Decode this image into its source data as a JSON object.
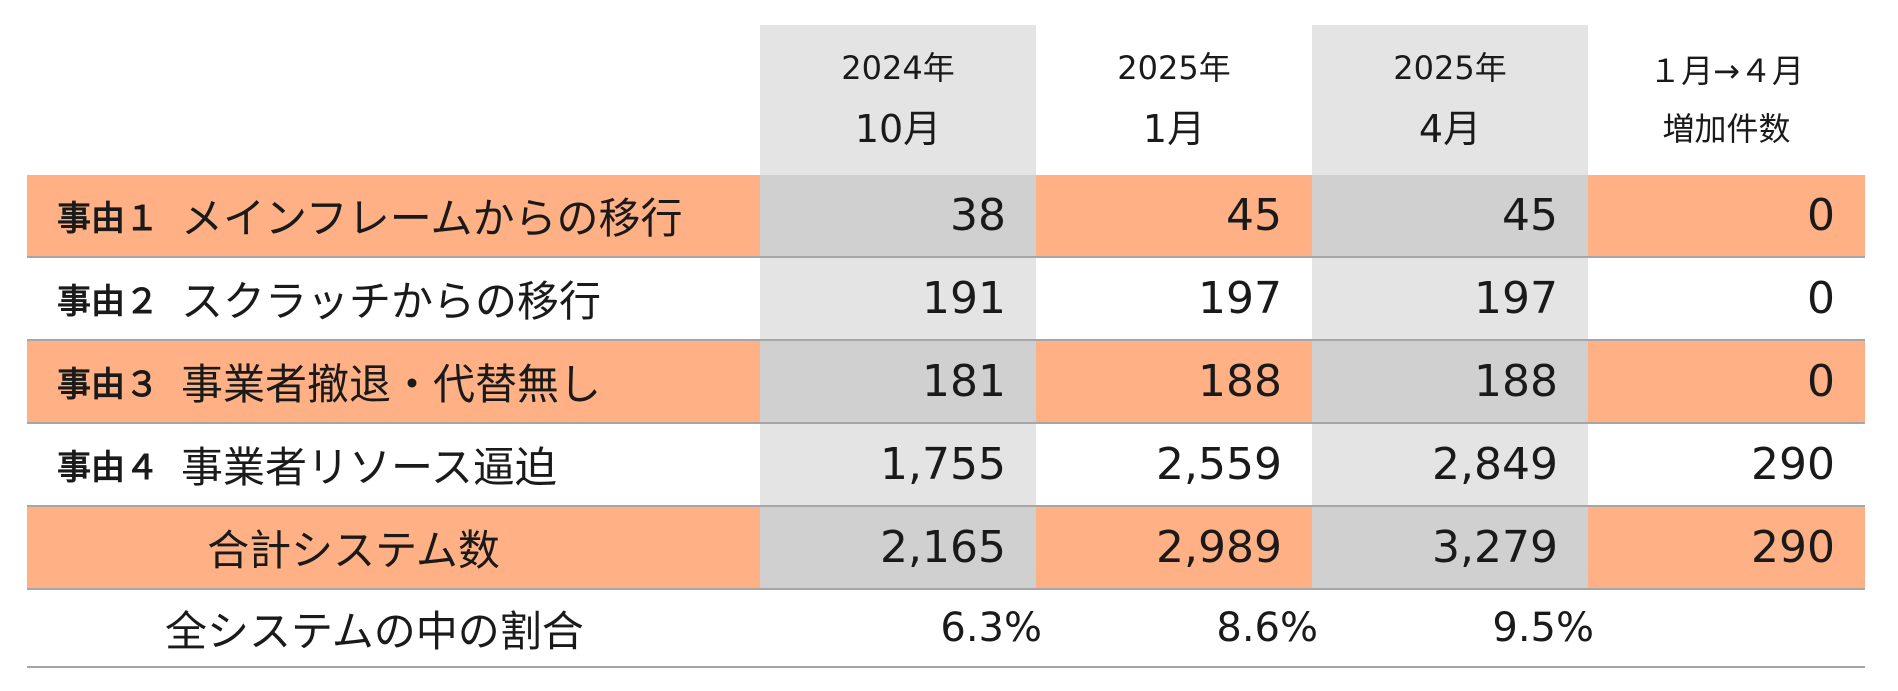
{
  "header": {
    "col1": {
      "line1": "2024年",
      "line2": "10月"
    },
    "col2": {
      "line1": "2025年",
      "line2": "1月"
    },
    "col3": {
      "line1": "2025年",
      "line2": "4月"
    },
    "col4": {
      "line1": "１月→４月",
      "line2": "増加件数"
    }
  },
  "rows": [
    {
      "reason": "事由１",
      "label": "メインフレームからの移行",
      "values": [
        "38",
        "45",
        "45",
        "0"
      ]
    },
    {
      "reason": "事由２",
      "label": "スクラッチからの移行",
      "values": [
        "191",
        "197",
        "197",
        "0"
      ]
    },
    {
      "reason": "事由３",
      "label": "事業者撤退・代替無し",
      "values": [
        "181",
        "188",
        "188",
        "0"
      ]
    },
    {
      "reason": "事由４",
      "label": "事業者リソース逼迫",
      "values": [
        "1,755",
        "2,559",
        "2,849",
        "290"
      ]
    }
  ],
  "total": {
    "label": "合計システム数",
    "values": [
      "2,165",
      "2,989",
      "3,279",
      "290"
    ]
  },
  "ratio": {
    "label": "全システムの中の割合",
    "values": [
      "6.3%",
      "8.6%",
      "9.5%"
    ]
  },
  "colors": {
    "orange": "#ffb084",
    "gray_light": "#e4e4e4",
    "gray_dark": "#d0d0d0"
  }
}
